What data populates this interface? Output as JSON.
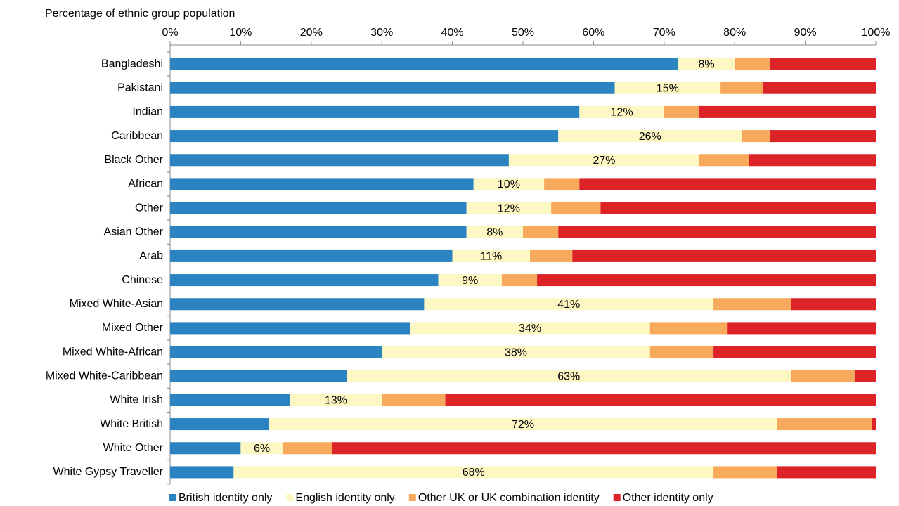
{
  "chart_data": {
    "type": "stacked_bar_horizontal",
    "axis_title": "Percentage of ethnic group population",
    "categories": [
      "Bangladeshi",
      "Pakistani",
      "Indian",
      "Caribbean",
      "Black Other",
      "African",
      "Other",
      "Asian Other",
      "Arab",
      "Chinese",
      "Mixed White-Asian",
      "Mixed Other",
      "Mixed White-African",
      "Mixed White-Caribbean",
      "White Irish",
      "White British",
      "White Other",
      "White Gypsy Traveller"
    ],
    "series": [
      {
        "name": "British identity only",
        "color": "#2b83c1",
        "values": [
          72,
          63,
          58,
          55,
          48,
          43,
          42,
          42,
          40,
          38,
          36,
          34,
          30,
          25,
          17,
          14,
          10,
          9
        ]
      },
      {
        "name": "English identity only",
        "color": "#fdf7c3",
        "values": [
          8,
          15,
          12,
          26,
          27,
          10,
          12,
          8,
          11,
          9,
          41,
          34,
          38,
          63,
          13,
          72,
          6,
          68
        ],
        "value_labels": [
          "8%",
          "15%",
          "12%",
          "26%",
          "27%",
          "10%",
          "12%",
          "8%",
          "11%",
          "9%",
          "41%",
          "34%",
          "38%",
          "63%",
          "13%",
          "72%",
          "6%",
          "68%"
        ]
      },
      {
        "name": "Other UK or UK combination identity",
        "color": "#f7a95c",
        "values": [
          5,
          6,
          5,
          4,
          7,
          5,
          7,
          5,
          6,
          5,
          11,
          11,
          9,
          9,
          9,
          13.5,
          7,
          9
        ]
      },
      {
        "name": "Other identity only",
        "color": "#dc2328",
        "values": [
          15,
          16,
          25,
          15,
          18,
          42,
          39,
          45,
          43,
          48,
          12,
          21,
          23,
          3,
          61,
          0.5,
          77,
          14
        ]
      }
    ],
    "xlim": [
      0,
      100
    ],
    "xticks": [
      {
        "value": 0,
        "label": "0%"
      },
      {
        "value": 10,
        "label": "10%"
      },
      {
        "value": 20,
        "label": "20%"
      },
      {
        "value": 30,
        "label": "30%"
      },
      {
        "value": 40,
        "label": "40%"
      },
      {
        "value": 50,
        "label": "50%"
      },
      {
        "value": 60,
        "label": "60%"
      },
      {
        "value": 70,
        "label": "70%"
      },
      {
        "value": 80,
        "label": "80%"
      },
      {
        "value": 90,
        "label": "90%"
      },
      {
        "value": 100,
        "label": "100%"
      }
    ],
    "legend_position": "bottom"
  }
}
